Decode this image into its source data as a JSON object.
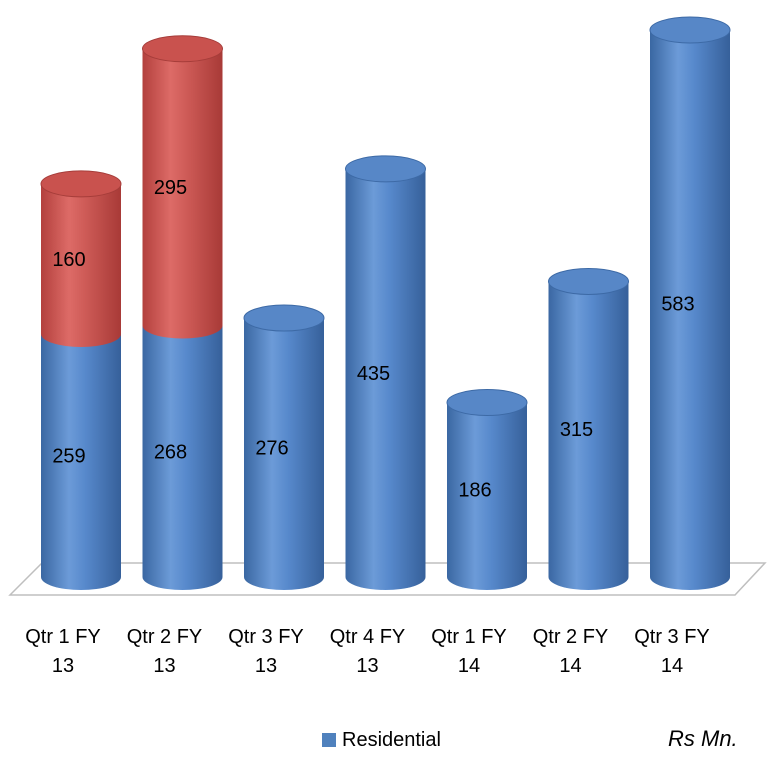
{
  "chart_data": {
    "type": "bar",
    "subtype": "stacked-cylinder",
    "categories": [
      [
        "Qtr 1 FY",
        "13"
      ],
      [
        "Qtr 2 FY",
        "13"
      ],
      [
        "Qtr 3 FY",
        "13"
      ],
      [
        "Qtr 4 FY",
        "13"
      ],
      [
        "Qtr 1 FY",
        "14"
      ],
      [
        "Qtr 2 FY",
        "14"
      ],
      [
        "Qtr 3 FY",
        "14"
      ]
    ],
    "series": [
      {
        "name": "Residential",
        "color": "#4F81BD",
        "values": [
          259,
          268,
          276,
          435,
          186,
          315,
          583
        ]
      },
      {
        "color": "#C0504D",
        "values": [
          160,
          295,
          null,
          null,
          null,
          null,
          null
        ]
      }
    ],
    "legend": {
      "placement": "bottom",
      "label": "Residential",
      "color": "#4F81BD"
    },
    "unit_label": "Rs Mn.",
    "grid": false,
    "ylim": [
      0,
      583
    ]
  }
}
